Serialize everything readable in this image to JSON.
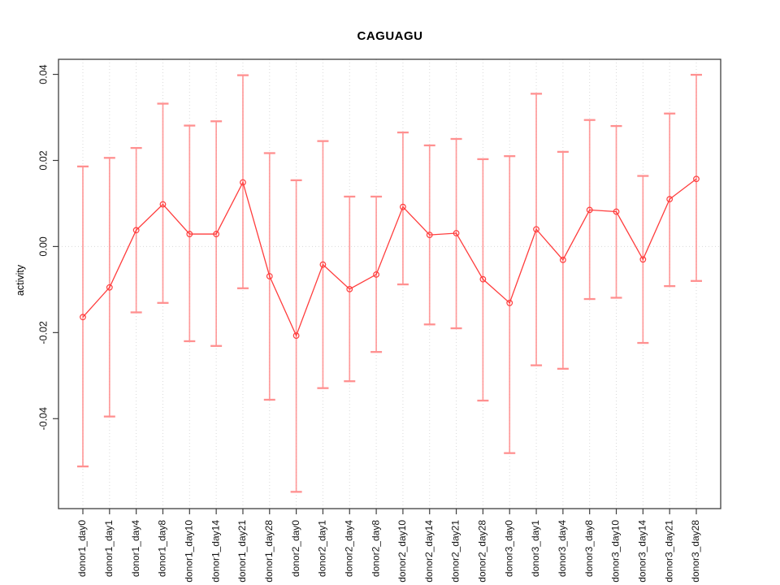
{
  "chart_data": {
    "type": "line",
    "title": "CAGUAGU",
    "xlabel": "",
    "ylabel": "activity",
    "legend": "none",
    "grid": "vertical dotted line at each category; horizontal dotted line at y=0",
    "marker": "open-circle",
    "error_bars": true,
    "ylim": [
      -0.0609,
      0.0435
    ],
    "yticks": [
      -0.04,
      -0.02,
      0.0,
      0.02,
      0.04
    ],
    "ytick_labels": [
      "-0.04",
      "-0.02",
      "0.00",
      "0.02",
      "0.04"
    ],
    "categories": [
      "donor1_day0",
      "donor1_day1",
      "donor1_day4",
      "donor1_day8",
      "donor1_day10",
      "donor1_day14",
      "donor1_day21",
      "donor1_day28",
      "donor2_day0",
      "donor2_day1",
      "donor2_day4",
      "donor2_day8",
      "donor2_day10",
      "donor2_day14",
      "donor2_day21",
      "donor2_day28",
      "donor3_day0",
      "donor3_day1",
      "donor3_day4",
      "donor3_day8",
      "donor3_day10",
      "donor3_day14",
      "donor3_day21",
      "donor3_day28"
    ],
    "series": [
      {
        "name": "activity",
        "values": [
          -0.0164,
          -0.0095,
          0.0038,
          0.0098,
          0.0029,
          0.0029,
          0.0149,
          -0.0069,
          -0.0207,
          -0.0042,
          -0.0099,
          -0.0065,
          0.0092,
          0.0027,
          0.0031,
          -0.0076,
          -0.0131,
          0.004,
          -0.0031,
          0.0085,
          0.0081,
          -0.003,
          0.011,
          0.0157
        ],
        "error_high": [
          0.0186,
          0.0206,
          0.0229,
          0.0332,
          0.0281,
          0.0291,
          0.0398,
          0.0217,
          0.0154,
          0.0245,
          0.0116,
          0.0116,
          0.0265,
          0.0235,
          0.025,
          0.0203,
          0.021,
          0.0355,
          0.022,
          0.0294,
          0.028,
          0.0164,
          0.0309,
          0.0399
        ],
        "error_low": [
          -0.0511,
          -0.0395,
          -0.0153,
          -0.0131,
          -0.022,
          -0.0231,
          -0.0097,
          -0.0356,
          -0.057,
          -0.0329,
          -0.0313,
          -0.0245,
          -0.0088,
          -0.0181,
          -0.019,
          -0.0358,
          -0.048,
          -0.0276,
          -0.0284,
          -0.0122,
          -0.0119,
          -0.0224,
          -0.0092,
          -0.008
        ]
      }
    ],
    "colors": {
      "line": "#ff3d3d",
      "point": "#ff3d3d",
      "error_bar": "#ff8585",
      "error_cap": "#ff9090",
      "grid": "#d9d9d9",
      "axis_box": "#3f3f3f",
      "text": "#111111",
      "background": "#ffffff"
    }
  }
}
